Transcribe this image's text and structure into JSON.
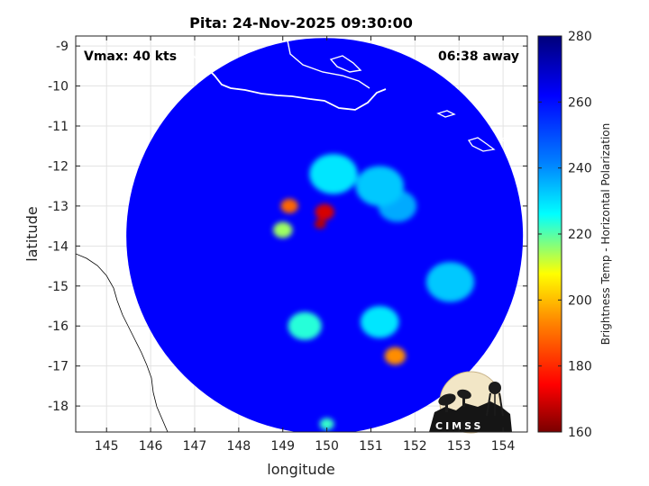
{
  "chart_data": {
    "type": "heatmap",
    "title": "Pita: 24-Nov-2025 09:30:00",
    "xlabel": "longitude",
    "ylabel": "latitude",
    "xlim": [
      144.3,
      154.55
    ],
    "ylim": [
      -18.65,
      -8.75
    ],
    "xticks": [
      145,
      146,
      147,
      148,
      149,
      150,
      151,
      152,
      153,
      154
    ],
    "yticks": [
      -9,
      -10,
      -11,
      -12,
      -13,
      -14,
      -15,
      -16,
      -17,
      -18
    ],
    "grid": true,
    "annotations": {
      "vmax": "Vmax: 40 kts",
      "away": "06:38 away"
    },
    "colorbar": {
      "label": "Brightness Temp - Horizontal Polarization",
      "range": [
        160,
        280
      ],
      "ticks": [
        280,
        260,
        240,
        220,
        200,
        180,
        160
      ],
      "colormap": [
        "#7a0000",
        "#ff0000",
        "#ff8800",
        "#ffff00",
        "#00ffff",
        "#0080ff",
        "#0000ff",
        "#00007a"
      ]
    },
    "swath": {
      "center": [
        149.95,
        -13.75
      ],
      "radius_deg": 4.95,
      "background_value": 263
    },
    "features": [
      {
        "lon": 149.95,
        "lat": -13.15,
        "value": 172,
        "radius": 0.2
      },
      {
        "lon": 149.85,
        "lat": -13.45,
        "value": 168,
        "radius": 0.12
      },
      {
        "lon": 149.15,
        "lat": -13.0,
        "value": 190,
        "radius": 0.18
      },
      {
        "lon": 151.55,
        "lat": -16.75,
        "value": 195,
        "radius": 0.22
      },
      {
        "lon": 150.15,
        "lat": -12.2,
        "value": 232,
        "radius": 0.5
      },
      {
        "lon": 151.2,
        "lat": -12.5,
        "value": 236,
        "radius": 0.5
      },
      {
        "lon": 151.6,
        "lat": -13.0,
        "value": 240,
        "radius": 0.4
      },
      {
        "lon": 149.5,
        "lat": -16.0,
        "value": 226,
        "radius": 0.35
      },
      {
        "lon": 151.2,
        "lat": -15.9,
        "value": 232,
        "radius": 0.4
      },
      {
        "lon": 152.8,
        "lat": -14.9,
        "value": 236,
        "radius": 0.5
      },
      {
        "lon": 149.0,
        "lat": -13.6,
        "value": 218,
        "radius": 0.2
      },
      {
        "lon": 150.0,
        "lat": -18.45,
        "value": 225,
        "radius": 0.15
      }
    ]
  },
  "logo": {
    "text": "CIMSS"
  }
}
